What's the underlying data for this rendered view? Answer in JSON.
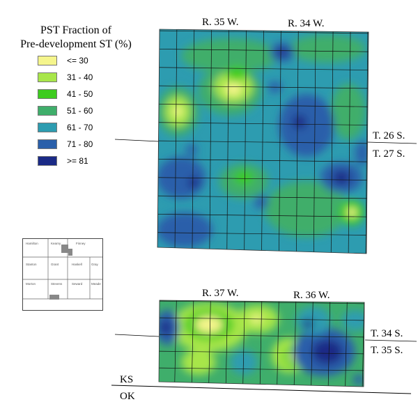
{
  "legend": {
    "title_line1": "PST Fraction of",
    "title_line2": "Pre-development ST (%)",
    "items": [
      {
        "label": "<= 30",
        "color": "#f5f58c"
      },
      {
        "label": "31 - 40",
        "color": "#a8e64a"
      },
      {
        "label": "41 - 50",
        "color": "#3dcc1f"
      },
      {
        "label": "51 - 60",
        "color": "#3fae6b"
      },
      {
        "label": "61 - 70",
        "color": "#2d9cb0"
      },
      {
        "label": "71 - 80",
        "color": "#2a5faa"
      },
      {
        "label": ">= 81",
        "color": "#1a2a86"
      }
    ]
  },
  "upper_map": {
    "range_left": "R. 35 W.",
    "range_right": "R. 34 W.",
    "township_top": "T. 26 S.",
    "township_bottom": "T. 27 S."
  },
  "lower_map": {
    "range_left": "R. 37 W.",
    "range_right": "R. 36 W.",
    "township_top": "T. 34 S.",
    "township_bottom": "T. 35 S.",
    "state_top": "KS",
    "state_bottom": "OK"
  },
  "inset_map": {
    "counties": [
      "Hamilton",
      "Kearny",
      "Finney",
      "Stanton",
      "Grant",
      "Haskell",
      "Gray",
      "Morton",
      "Stevens",
      "Seward",
      "Meade"
    ]
  }
}
